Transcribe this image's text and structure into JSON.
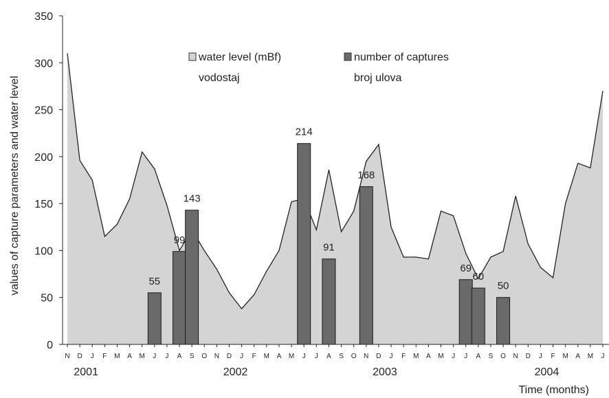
{
  "chart_data": {
    "type": "bar+area",
    "title": "",
    "ylabel": "values of capture parameters and water level",
    "xlabel": "Time (months)",
    "ylim": [
      0,
      350
    ],
    "yticks": [
      0,
      50,
      100,
      150,
      200,
      250,
      300,
      350
    ],
    "grid": false,
    "legend_position": "top",
    "x_month_labels": [
      "N",
      "D",
      "J",
      "F",
      "M",
      "A",
      "M",
      "J",
      "J",
      "A",
      "S",
      "O",
      "N",
      "D",
      "J",
      "F",
      "M",
      "A",
      "M",
      "J",
      "J",
      "A",
      "S",
      "O",
      "N",
      "D",
      "J",
      "F",
      "M",
      "A",
      "M",
      "J",
      "J",
      "A",
      "S",
      "O",
      "N",
      "D",
      "J",
      "F",
      "M",
      "A",
      "M",
      "J"
    ],
    "year_labels": [
      {
        "label": "2001",
        "month_index": 1.5
      },
      {
        "label": "2002",
        "month_index": 13.5
      },
      {
        "label": "2003",
        "month_index": 25.5
      },
      {
        "label": "2004",
        "month_index": 38.5
      }
    ],
    "series": [
      {
        "name": "water level (mBf)",
        "name2": "vodostaj",
        "type": "area",
        "color": "#d4d4d4",
        "values": [
          310,
          196,
          175,
          115,
          128,
          155,
          205,
          187,
          148,
          100,
          122,
          100,
          80,
          55,
          38,
          53,
          78,
          100,
          152,
          155,
          122,
          186,
          120,
          142,
          195,
          213,
          125,
          93,
          93,
          91,
          142,
          137,
          97,
          70,
          93,
          99,
          158,
          107,
          82,
          71,
          150,
          193,
          188,
          270
        ]
      },
      {
        "name": "number of captures",
        "name2": "broj ulova",
        "type": "bar",
        "color": "#6a6a6a",
        "points": [
          {
            "month_index": 7,
            "value": 55,
            "label": "55"
          },
          {
            "month_index": 9,
            "value": 99,
            "label": "99"
          },
          {
            "month_index": 10,
            "value": 143,
            "label": "143"
          },
          {
            "month_index": 19,
            "value": 214,
            "label": "214"
          },
          {
            "month_index": 21,
            "value": 91,
            "label": "91"
          },
          {
            "month_index": 24,
            "value": 168,
            "label": "168"
          },
          {
            "month_index": 32,
            "value": 69,
            "label": "69"
          },
          {
            "month_index": 33,
            "value": 60,
            "label": "60"
          },
          {
            "month_index": 35,
            "value": 50,
            "label": "50"
          }
        ]
      }
    ]
  }
}
